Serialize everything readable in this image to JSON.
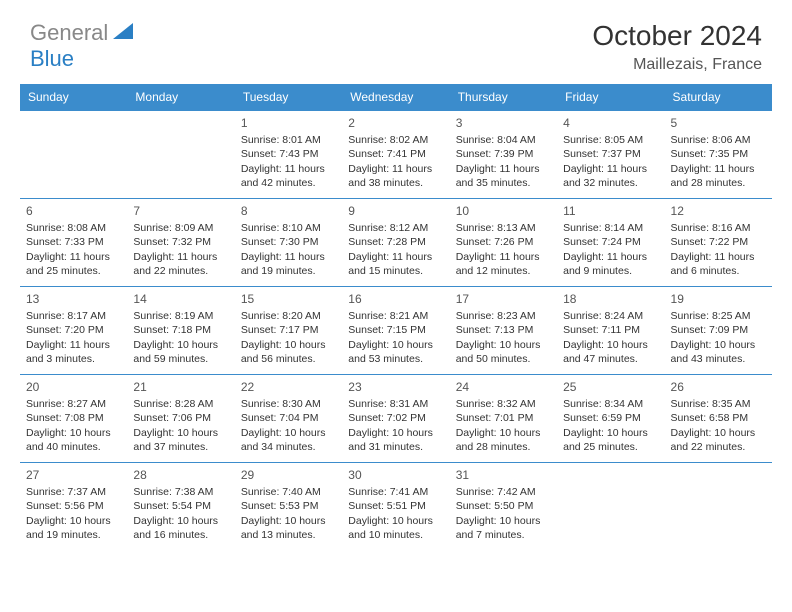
{
  "brand": {
    "gray": "General",
    "blue": "Blue"
  },
  "header": {
    "title": "October 2024",
    "location": "Maillezais, France"
  },
  "colors": {
    "header_bg": "#3b8ccc",
    "header_text": "#ffffff",
    "border": "#3b8ccc",
    "logo_gray": "#888888",
    "logo_blue": "#2a7fc4",
    "text": "#333333"
  },
  "style": {
    "title_fontsize": 28,
    "location_fontsize": 16,
    "dayhead_fontsize": 12,
    "cell_fontsize": 10.5,
    "daynum_fontsize": 12
  },
  "days": [
    "Sunday",
    "Monday",
    "Tuesday",
    "Wednesday",
    "Thursday",
    "Friday",
    "Saturday"
  ],
  "weeks": [
    [
      null,
      null,
      {
        "n": "1",
        "sr": "Sunrise: 8:01 AM",
        "ss": "Sunset: 7:43 PM",
        "dl": "Daylight: 11 hours and 42 minutes."
      },
      {
        "n": "2",
        "sr": "Sunrise: 8:02 AM",
        "ss": "Sunset: 7:41 PM",
        "dl": "Daylight: 11 hours and 38 minutes."
      },
      {
        "n": "3",
        "sr": "Sunrise: 8:04 AM",
        "ss": "Sunset: 7:39 PM",
        "dl": "Daylight: 11 hours and 35 minutes."
      },
      {
        "n": "4",
        "sr": "Sunrise: 8:05 AM",
        "ss": "Sunset: 7:37 PM",
        "dl": "Daylight: 11 hours and 32 minutes."
      },
      {
        "n": "5",
        "sr": "Sunrise: 8:06 AM",
        "ss": "Sunset: 7:35 PM",
        "dl": "Daylight: 11 hours and 28 minutes."
      }
    ],
    [
      {
        "n": "6",
        "sr": "Sunrise: 8:08 AM",
        "ss": "Sunset: 7:33 PM",
        "dl": "Daylight: 11 hours and 25 minutes."
      },
      {
        "n": "7",
        "sr": "Sunrise: 8:09 AM",
        "ss": "Sunset: 7:32 PM",
        "dl": "Daylight: 11 hours and 22 minutes."
      },
      {
        "n": "8",
        "sr": "Sunrise: 8:10 AM",
        "ss": "Sunset: 7:30 PM",
        "dl": "Daylight: 11 hours and 19 minutes."
      },
      {
        "n": "9",
        "sr": "Sunrise: 8:12 AM",
        "ss": "Sunset: 7:28 PM",
        "dl": "Daylight: 11 hours and 15 minutes."
      },
      {
        "n": "10",
        "sr": "Sunrise: 8:13 AM",
        "ss": "Sunset: 7:26 PM",
        "dl": "Daylight: 11 hours and 12 minutes."
      },
      {
        "n": "11",
        "sr": "Sunrise: 8:14 AM",
        "ss": "Sunset: 7:24 PM",
        "dl": "Daylight: 11 hours and 9 minutes."
      },
      {
        "n": "12",
        "sr": "Sunrise: 8:16 AM",
        "ss": "Sunset: 7:22 PM",
        "dl": "Daylight: 11 hours and 6 minutes."
      }
    ],
    [
      {
        "n": "13",
        "sr": "Sunrise: 8:17 AM",
        "ss": "Sunset: 7:20 PM",
        "dl": "Daylight: 11 hours and 3 minutes."
      },
      {
        "n": "14",
        "sr": "Sunrise: 8:19 AM",
        "ss": "Sunset: 7:18 PM",
        "dl": "Daylight: 10 hours and 59 minutes."
      },
      {
        "n": "15",
        "sr": "Sunrise: 8:20 AM",
        "ss": "Sunset: 7:17 PM",
        "dl": "Daylight: 10 hours and 56 minutes."
      },
      {
        "n": "16",
        "sr": "Sunrise: 8:21 AM",
        "ss": "Sunset: 7:15 PM",
        "dl": "Daylight: 10 hours and 53 minutes."
      },
      {
        "n": "17",
        "sr": "Sunrise: 8:23 AM",
        "ss": "Sunset: 7:13 PM",
        "dl": "Daylight: 10 hours and 50 minutes."
      },
      {
        "n": "18",
        "sr": "Sunrise: 8:24 AM",
        "ss": "Sunset: 7:11 PM",
        "dl": "Daylight: 10 hours and 47 minutes."
      },
      {
        "n": "19",
        "sr": "Sunrise: 8:25 AM",
        "ss": "Sunset: 7:09 PM",
        "dl": "Daylight: 10 hours and 43 minutes."
      }
    ],
    [
      {
        "n": "20",
        "sr": "Sunrise: 8:27 AM",
        "ss": "Sunset: 7:08 PM",
        "dl": "Daylight: 10 hours and 40 minutes."
      },
      {
        "n": "21",
        "sr": "Sunrise: 8:28 AM",
        "ss": "Sunset: 7:06 PM",
        "dl": "Daylight: 10 hours and 37 minutes."
      },
      {
        "n": "22",
        "sr": "Sunrise: 8:30 AM",
        "ss": "Sunset: 7:04 PM",
        "dl": "Daylight: 10 hours and 34 minutes."
      },
      {
        "n": "23",
        "sr": "Sunrise: 8:31 AM",
        "ss": "Sunset: 7:02 PM",
        "dl": "Daylight: 10 hours and 31 minutes."
      },
      {
        "n": "24",
        "sr": "Sunrise: 8:32 AM",
        "ss": "Sunset: 7:01 PM",
        "dl": "Daylight: 10 hours and 28 minutes."
      },
      {
        "n": "25",
        "sr": "Sunrise: 8:34 AM",
        "ss": "Sunset: 6:59 PM",
        "dl": "Daylight: 10 hours and 25 minutes."
      },
      {
        "n": "26",
        "sr": "Sunrise: 8:35 AM",
        "ss": "Sunset: 6:58 PM",
        "dl": "Daylight: 10 hours and 22 minutes."
      }
    ],
    [
      {
        "n": "27",
        "sr": "Sunrise: 7:37 AM",
        "ss": "Sunset: 5:56 PM",
        "dl": "Daylight: 10 hours and 19 minutes."
      },
      {
        "n": "28",
        "sr": "Sunrise: 7:38 AM",
        "ss": "Sunset: 5:54 PM",
        "dl": "Daylight: 10 hours and 16 minutes."
      },
      {
        "n": "29",
        "sr": "Sunrise: 7:40 AM",
        "ss": "Sunset: 5:53 PM",
        "dl": "Daylight: 10 hours and 13 minutes."
      },
      {
        "n": "30",
        "sr": "Sunrise: 7:41 AM",
        "ss": "Sunset: 5:51 PM",
        "dl": "Daylight: 10 hours and 10 minutes."
      },
      {
        "n": "31",
        "sr": "Sunrise: 7:42 AM",
        "ss": "Sunset: 5:50 PM",
        "dl": "Daylight: 10 hours and 7 minutes."
      },
      null,
      null
    ]
  ]
}
